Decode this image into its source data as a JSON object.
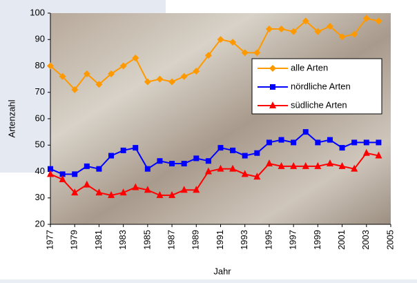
{
  "chart_data": {
    "type": "line",
    "x_label": "Jahr",
    "y_label": "Artenzahl",
    "x": [
      1977,
      1978,
      1979,
      1980,
      1981,
      1982,
      1983,
      1984,
      1985,
      1986,
      1987,
      1988,
      1989,
      1990,
      1991,
      1992,
      1993,
      1994,
      1995,
      1996,
      1997,
      1998,
      1999,
      2000,
      2001,
      2002,
      2003,
      2004
    ],
    "series": [
      {
        "name": "alle Arten",
        "color": "#ff9900",
        "marker": "diamond",
        "values": [
          80,
          76,
          71,
          77,
          73,
          77,
          80,
          83,
          74,
          75,
          74,
          76,
          78,
          84,
          90,
          89,
          85,
          85,
          94,
          94,
          93,
          97,
          93,
          95,
          91,
          92,
          98,
          97
        ]
      },
      {
        "name": "nördliche Arten",
        "color": "#0000ff",
        "marker": "square",
        "values": [
          41,
          39,
          39,
          42,
          41,
          46,
          48,
          49,
          41,
          44,
          43,
          43,
          45,
          44,
          49,
          48,
          46,
          47,
          51,
          52,
          51,
          55,
          51,
          52,
          49,
          51,
          51,
          51
        ]
      },
      {
        "name": "südliche Arten",
        "color": "#ff0000",
        "marker": "triangle",
        "values": [
          39,
          37,
          32,
          35,
          32,
          31,
          32,
          34,
          33,
          31,
          31,
          33,
          33,
          40,
          41,
          41,
          39,
          38,
          43,
          42,
          42,
          42,
          42,
          43,
          42,
          41,
          47,
          46
        ]
      }
    ],
    "xlim": [
      1977,
      2005
    ],
    "xticks": [
      1977,
      1979,
      1981,
      1983,
      1985,
      1987,
      1989,
      1991,
      1993,
      1995,
      1997,
      1999,
      2001,
      2003,
      2005
    ],
    "ylim": [
      20,
      100
    ],
    "yticks": [
      20,
      30,
      40,
      50,
      60,
      70,
      80,
      90,
      100
    ]
  }
}
